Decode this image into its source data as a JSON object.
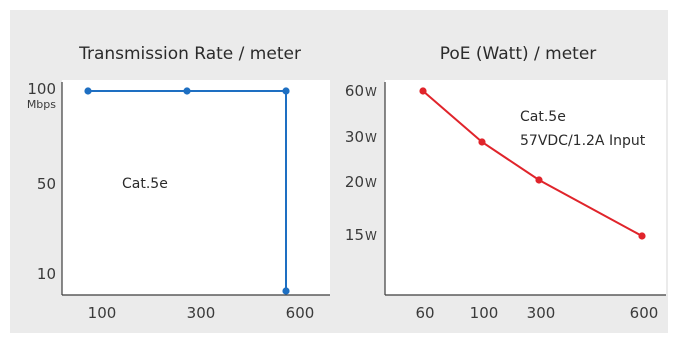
{
  "chart_data": [
    {
      "type": "line",
      "title": "Transmission Rate / meter",
      "x": [
        100,
        300,
        600,
        600
      ],
      "y": [
        100,
        100,
        100,
        10
      ],
      "x_ticks": [
        {
          "label": "100",
          "value": 100
        },
        {
          "label": "300",
          "value": 300
        },
        {
          "label": "600",
          "value": 600
        }
      ],
      "y_ticks": [
        {
          "label": "100",
          "value": 100,
          "unit": "Mbps"
        },
        {
          "label": "50",
          "value": 50
        },
        {
          "label": "10",
          "value": 10
        }
      ],
      "annotation": "Cat.5e",
      "color": "#1e6fc2",
      "grid": false
    },
    {
      "type": "line",
      "title": "PoE (Watt) / meter",
      "x": [
        60,
        100,
        300,
        600
      ],
      "y": [
        60,
        30,
        20,
        15
      ],
      "x_ticks": [
        {
          "label": "60",
          "value": 60
        },
        {
          "label": "100",
          "value": 100
        },
        {
          "label": "300",
          "value": 300
        },
        {
          "label": "600",
          "value": 600
        }
      ],
      "y_ticks": [
        {
          "label": "60",
          "value": 60,
          "unit": "W"
        },
        {
          "label": "30",
          "value": 30,
          "unit": "W"
        },
        {
          "label": "20",
          "value": 20,
          "unit": "W"
        },
        {
          "label": "15",
          "value": 15,
          "unit": "W"
        }
      ],
      "annotation_lines": [
        "Cat.5e",
        "57VDC/1.2A Input"
      ],
      "color": "#e0242b",
      "grid": false
    }
  ],
  "colors": {
    "background": "#ebebeb",
    "panel": "#ffffff",
    "axis": "#3c3c3c"
  }
}
